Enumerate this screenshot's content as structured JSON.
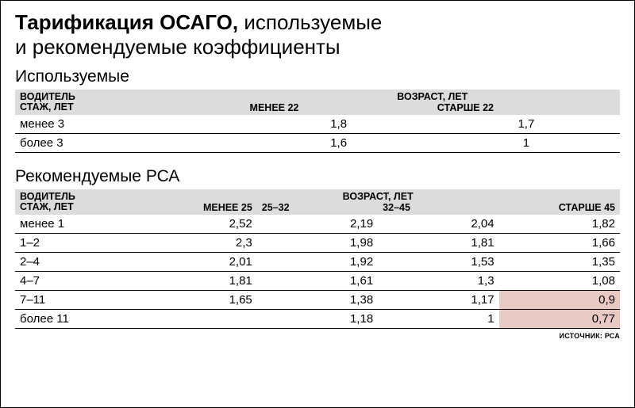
{
  "title": {
    "bold": "Тарификация ОСАГО,",
    "light1": "используемые",
    "light2": "и рекомендуемые коэффициенты"
  },
  "section1": {
    "heading": "Используемые",
    "row_header_line1": "ВОДИТЕЛЬ",
    "row_header_line2": "СТАЖ, ЛЕТ",
    "age_header": "ВОЗРАСТ, ЛЕТ",
    "cols": [
      "МЕНЕЕ 22",
      "СТАРШЕ 22"
    ],
    "rows": [
      {
        "label": "менее 3",
        "vals": [
          "1,8",
          "1,7"
        ]
      },
      {
        "label": "более 3",
        "vals": [
          "1,6",
          "1"
        ]
      }
    ]
  },
  "section2": {
    "heading": "Рекомендуемые РСА",
    "row_header_line1": "ВОДИТЕЛЬ",
    "row_header_line2": "СТАЖ, ЛЕТ",
    "age_header": "ВОЗРАСТ, ЛЕТ",
    "cols": [
      "МЕНЕЕ 25",
      "25–32",
      "32–45",
      "СТАРШЕ 45"
    ],
    "rows": [
      {
        "label": "менее 1",
        "vals": [
          "2,52",
          "2,19",
          "2,04",
          "1,82"
        ],
        "hl": []
      },
      {
        "label": "1–2",
        "vals": [
          "2,3",
          "1,98",
          "1,81",
          "1,66"
        ],
        "hl": []
      },
      {
        "label": "2–4",
        "vals": [
          "2,01",
          "1,92",
          "1,53",
          "1,35"
        ],
        "hl": []
      },
      {
        "label": "4–7",
        "vals": [
          "1,81",
          "1,61",
          "1,3",
          "1,08"
        ],
        "hl": []
      },
      {
        "label": "7–11",
        "vals": [
          "1,65",
          "1,38",
          "1,17",
          "0,9"
        ],
        "hl": [
          3
        ]
      },
      {
        "label": "более 11",
        "vals": [
          "",
          "1,18",
          "1",
          "0,77"
        ],
        "hl": [
          3
        ]
      }
    ]
  },
  "source": "ИСТОЧНИК: РСА",
  "colors": {
    "header_bg": "#dcdcdc",
    "highlight_bg": "#e9c9c4",
    "border": "#000000",
    "text": "#000000",
    "background": "#ffffff"
  }
}
